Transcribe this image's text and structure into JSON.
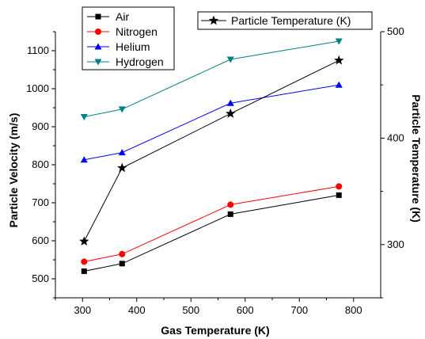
{
  "chart_data": {
    "type": "line",
    "xlabel": "Gas Temperature (K)",
    "ylabel_left": "Particle Velocity (m/s)",
    "ylabel_right": "Particle Temperature (K)",
    "x_axis": {
      "range": [
        250,
        850
      ],
      "ticks": [
        300,
        400,
        500,
        600,
        700,
        800
      ]
    },
    "y_left_axis": {
      "range": [
        450,
        1150
      ],
      "ticks": [
        500,
        600,
        700,
        800,
        900,
        1000,
        1100
      ]
    },
    "y_right_axis": {
      "range": [
        250,
        500
      ],
      "ticks": [
        300,
        400,
        500
      ]
    },
    "x": [
      303,
      373,
      573,
      773
    ],
    "series": [
      {
        "name": "Air",
        "axis": "left",
        "color": "#000000",
        "marker": "square",
        "values": [
          520,
          540,
          670,
          720
        ]
      },
      {
        "name": "Nitrogen",
        "axis": "left",
        "color": "#ff0000",
        "marker": "circle",
        "values": [
          545,
          565,
          695,
          743
        ]
      },
      {
        "name": "Helium",
        "axis": "left",
        "color": "#0000ff",
        "marker": "triangle-up",
        "values": [
          813,
          832,
          962,
          1010
        ]
      },
      {
        "name": "Hydrogen",
        "axis": "left",
        "color": "#008080",
        "marker": "triangle-down",
        "values": [
          926,
          946,
          1077,
          1125
        ]
      },
      {
        "name": "Particle Temperature (K)",
        "axis": "right",
        "color": "#000000",
        "marker": "star",
        "values": [
          303,
          372,
          423,
          473
        ]
      }
    ],
    "legend_placement": "top-left",
    "right_legend_placement": "top-right",
    "grid": false
  }
}
